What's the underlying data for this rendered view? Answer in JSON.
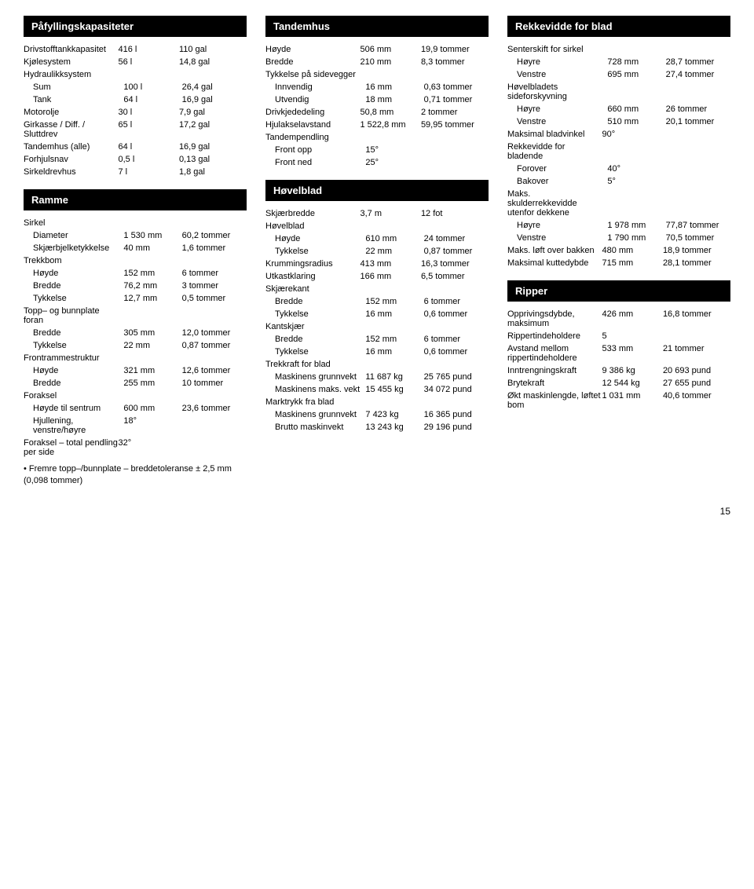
{
  "col1": {
    "sec1_title": "Påfyllingskapasiteter",
    "sec1_rows": [
      {
        "l": "Drivstofftankkapasitet",
        "a": "416 l",
        "b": "110 gal",
        "i": 0
      },
      {
        "l": "Kjølesystem",
        "a": "56 l",
        "b": "14,8 gal",
        "i": 0
      },
      {
        "l": "Hydraulikksystem",
        "a": "",
        "b": "",
        "i": 0
      },
      {
        "l": "Sum",
        "a": "100 l",
        "b": "26,4 gal",
        "i": 1
      },
      {
        "l": "Tank",
        "a": "64 l",
        "b": "16,9 gal",
        "i": 1
      },
      {
        "l": "Motorolje",
        "a": "30 l",
        "b": "7,9 gal",
        "i": 0
      },
      {
        "l": "Girkasse / Diff. / Sluttdrev",
        "a": "65 l",
        "b": "17,2 gal",
        "i": 0
      },
      {
        "l": "Tandemhus (alle)",
        "a": "64 l",
        "b": "16,9 gal",
        "i": 0
      },
      {
        "l": "Forhjulsnav",
        "a": "0,5 l",
        "b": "0,13 gal",
        "i": 0
      },
      {
        "l": "Sirkeldrevhus",
        "a": "7 l",
        "b": "1,8 gal",
        "i": 0
      }
    ],
    "sec2_title": "Ramme",
    "sec2_rows": [
      {
        "l": "Sirkel",
        "a": "",
        "b": "",
        "i": 0
      },
      {
        "l": "Diameter",
        "a": "1 530 mm",
        "b": "60,2 tommer",
        "i": 1
      },
      {
        "l": "Skjærbjelketykkelse",
        "a": "40 mm",
        "b": "1,6 tommer",
        "i": 1
      },
      {
        "l": "Trekkbom",
        "a": "",
        "b": "",
        "i": 0
      },
      {
        "l": "Høyde",
        "a": "152 mm",
        "b": "6 tommer",
        "i": 1
      },
      {
        "l": "Bredde",
        "a": "76,2 mm",
        "b": "3 tommer",
        "i": 1
      },
      {
        "l": "Tykkelse",
        "a": "12,7 mm",
        "b": "0,5 tommer",
        "i": 1
      },
      {
        "l": "Topp– og bunnplate foran",
        "a": "",
        "b": "",
        "i": 0
      },
      {
        "l": "Bredde",
        "a": "305 mm",
        "b": "12,0 tommer",
        "i": 1
      },
      {
        "l": "Tykkelse",
        "a": "22 mm",
        "b": "0,87 tommer",
        "i": 1
      },
      {
        "l": "Frontrammestruktur",
        "a": "",
        "b": "",
        "i": 0
      },
      {
        "l": "Høyde",
        "a": "321 mm",
        "b": "12,6 tommer",
        "i": 1
      },
      {
        "l": "Bredde",
        "a": "255 mm",
        "b": "10 tommer",
        "i": 1
      },
      {
        "l": "Foraksel",
        "a": "",
        "b": "",
        "i": 0
      },
      {
        "l": "Høyde til sentrum",
        "a": "600 mm",
        "b": "23,6 tommer",
        "i": 1
      },
      {
        "l": "Hjullening, venstre/høyre",
        "a": "18°",
        "b": "",
        "i": 1
      },
      {
        "l": "Foraksel – total pendling per side",
        "a": "32°",
        "b": "",
        "i": 0
      }
    ],
    "note": "• Fremre topp–/bunnplate – breddetoleranse ± 2,5 mm (0,098 tommer)"
  },
  "col2": {
    "sec1_title": "Tandemhus",
    "sec1_rows": [
      {
        "l": "Høyde",
        "a": "506 mm",
        "b": "19,9 tommer",
        "i": 0
      },
      {
        "l": "Bredde",
        "a": "210 mm",
        "b": "8,3 tommer",
        "i": 0
      },
      {
        "l": "Tykkelse på sidevegger",
        "a": "",
        "b": "",
        "i": 0
      },
      {
        "l": "Innvendig",
        "a": "16 mm",
        "b": "0,63 tommer",
        "i": 1
      },
      {
        "l": "Utvendig",
        "a": "18 mm",
        "b": "0,71 tommer",
        "i": 1
      },
      {
        "l": "Drivkjededeling",
        "a": "50,8 mm",
        "b": "2 tommer",
        "i": 0
      },
      {
        "l": "Hjulakselavstand",
        "a": "1 522,8 mm",
        "b": "59,95 tommer",
        "i": 0
      },
      {
        "l": "Tandempendling",
        "a": "",
        "b": "",
        "i": 0
      },
      {
        "l": "Front opp",
        "a": "15°",
        "b": "",
        "i": 1
      },
      {
        "l": "Front ned",
        "a": "25°",
        "b": "",
        "i": 1
      }
    ],
    "sec2_title": "Høvelblad",
    "sec2_rows": [
      {
        "l": "Skjærbredde",
        "a": "3,7 m",
        "b": "12 fot",
        "i": 0
      },
      {
        "l": "Høvelblad",
        "a": "",
        "b": "",
        "i": 0
      },
      {
        "l": "Høyde",
        "a": "610 mm",
        "b": "24 tommer",
        "i": 1
      },
      {
        "l": "Tykkelse",
        "a": "22 mm",
        "b": "0,87 tommer",
        "i": 1
      },
      {
        "l": "Krummingsradius",
        "a": "413 mm",
        "b": "16,3 tommer",
        "i": 0
      },
      {
        "l": "Utkastklaring",
        "a": "166 mm",
        "b": "6,5 tommer",
        "i": 0
      },
      {
        "l": "Skjærekant",
        "a": "",
        "b": "",
        "i": 0
      },
      {
        "l": "Bredde",
        "a": "152 mm",
        "b": "6 tommer",
        "i": 1
      },
      {
        "l": "Tykkelse",
        "a": "16 mm",
        "b": "0,6 tommer",
        "i": 1
      },
      {
        "l": "Kantskjær",
        "a": "",
        "b": "",
        "i": 0
      },
      {
        "l": "Bredde",
        "a": "152 mm",
        "b": "6 tommer",
        "i": 1
      },
      {
        "l": "Tykkelse",
        "a": "16 mm",
        "b": "0,6 tommer",
        "i": 1
      },
      {
        "l": "Trekkraft for blad",
        "a": "",
        "b": "",
        "i": 0
      },
      {
        "l": "Maskinens grunnvekt",
        "a": "11 687 kg",
        "b": "25 765 pund",
        "i": 1
      },
      {
        "l": "Maskinens maks. vekt",
        "a": "15 455 kg",
        "b": "34 072 pund",
        "i": 1
      },
      {
        "l": "Marktrykk fra blad",
        "a": "",
        "b": "",
        "i": 0
      },
      {
        "l": "Maskinens grunnvekt",
        "a": "7 423 kg",
        "b": "16 365 pund",
        "i": 1
      },
      {
        "l": "Brutto maskinvekt",
        "a": "13 243 kg",
        "b": "29 196 pund",
        "i": 1
      }
    ]
  },
  "col3": {
    "sec1_title": "Rekkevidde for blad",
    "sec1_rows": [
      {
        "l": "Senterskift for sirkel",
        "a": "",
        "b": "",
        "i": 0
      },
      {
        "l": "Høyre",
        "a": "728 mm",
        "b": "28,7 tommer",
        "i": 1
      },
      {
        "l": "Venstre",
        "a": "695 mm",
        "b": "27,4 tommer",
        "i": 1
      },
      {
        "l": "Høvelbladets sideforskyvning",
        "a": "",
        "b": "",
        "i": 0
      },
      {
        "l": "Høyre",
        "a": "660 mm",
        "b": "26 tommer",
        "i": 1
      },
      {
        "l": "Venstre",
        "a": "510 mm",
        "b": "20,1 tommer",
        "i": 1
      },
      {
        "l": "Maksimal bladvinkel",
        "a": "90°",
        "b": "",
        "i": 0
      },
      {
        "l": "Rekkevidde for bladende",
        "a": "",
        "b": "",
        "i": 0
      },
      {
        "l": "Forover",
        "a": "40°",
        "b": "",
        "i": 1
      },
      {
        "l": "Bakover",
        "a": "5°",
        "b": "",
        "i": 1
      },
      {
        "l": "Maks. skulderrekkevidde utenfor dekkene",
        "a": "",
        "b": "",
        "i": 0
      },
      {
        "l": "Høyre",
        "a": "1 978 mm",
        "b": "77,87 tommer",
        "i": 1
      },
      {
        "l": "Venstre",
        "a": "1 790 mm",
        "b": "70,5 tommer",
        "i": 1
      },
      {
        "l": "Maks. løft over bakken",
        "a": "480 mm",
        "b": "18,9 tommer",
        "i": 0
      },
      {
        "l": "Maksimal kuttedybde",
        "a": "715 mm",
        "b": "28,1 tommer",
        "i": 0
      }
    ],
    "sec2_title": "Ripper",
    "sec2_rows": [
      {
        "l": "Opprivingsdybde, maksimum",
        "a": "426 mm",
        "b": "16,8 tommer",
        "i": 0
      },
      {
        "l": "Rippertindeholdere",
        "a": "5",
        "b": "",
        "i": 0
      },
      {
        "l": "Avstand mellom rippertindeholdere",
        "a": "533 mm",
        "b": "21 tommer",
        "i": 0
      },
      {
        "l": "Inntrengningskraft",
        "a": "9 386 kg",
        "b": "20 693 pund",
        "i": 0
      },
      {
        "l": "Brytekraft",
        "a": "12 544 kg",
        "b": "27 655 pund",
        "i": 0
      },
      {
        "l": "Økt maskinlengde, løftet bom",
        "a": "1 031 mm",
        "b": "40,6 tommer",
        "i": 0
      }
    ]
  },
  "pagenum": "15"
}
